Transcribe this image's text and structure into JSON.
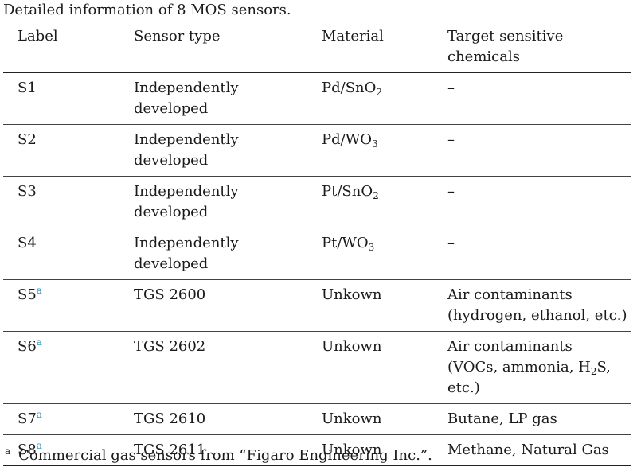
{
  "caption": "Detailed information of 8 MOS sensors.",
  "headers": {
    "label": "Label",
    "sensor_type": "Sensor type",
    "material": "Material",
    "target": "Target sensitive chemicals"
  },
  "rows": [
    {
      "label": "S1",
      "note": "",
      "type_line1": "Independently",
      "type_line2": "developed",
      "mat_pre": "Pd/SnO",
      "mat_sub": "2",
      "target_line1": "–",
      "target_line2": "",
      "target_line3": ""
    },
    {
      "label": "S2",
      "note": "",
      "type_line1": "Independently",
      "type_line2": "developed",
      "mat_pre": "Pd/WO",
      "mat_sub": "3",
      "target_line1": "–",
      "target_line2": "",
      "target_line3": ""
    },
    {
      "label": "S3",
      "note": "",
      "type_line1": "Independently",
      "type_line2": "developed",
      "mat_pre": "Pt/SnO",
      "mat_sub": "2",
      "target_line1": "–",
      "target_line2": "",
      "target_line3": ""
    },
    {
      "label": "S4",
      "note": "",
      "type_line1": "Independently",
      "type_line2": "developed",
      "mat_pre": "Pt/WO",
      "mat_sub": "3",
      "target_line1": "–",
      "target_line2": "",
      "target_line3": ""
    },
    {
      "label": "S5",
      "note": "a",
      "type_line1": "TGS 2600",
      "type_line2": "",
      "mat_pre": "Unkown",
      "mat_sub": "",
      "target_line1": "Air contaminants",
      "target_line2": "(hydrogen, ethanol, etc.)",
      "target_line3": ""
    },
    {
      "label": "S6",
      "note": "a",
      "type_line1": "TGS 2602",
      "type_line2": "",
      "mat_pre": "Unkown",
      "mat_sub": "",
      "target_line1": "Air contaminants",
      "target_line2": "(VOCs, ammonia, H",
      "target_line2_sub": "2",
      "target_line2_post": "S,",
      "target_line3": "etc.)"
    },
    {
      "label": "S7",
      "note": "a",
      "type_line1": "TGS 2610",
      "type_line2": "",
      "mat_pre": "Unkown",
      "mat_sub": "",
      "target_line1": "Butane, LP gas",
      "target_line2": "",
      "target_line3": ""
    },
    {
      "label": "S8",
      "note": "a",
      "type_line1": "TGS 2611",
      "type_line2": "",
      "mat_pre": "Unkown",
      "mat_sub": "",
      "target_line1": "Methane, Natural Gas",
      "target_line2": "",
      "target_line3": ""
    }
  ],
  "footnote": {
    "marker": "a",
    "text": "Commercial gas sensors from “Figaro Engineering Inc.”."
  }
}
